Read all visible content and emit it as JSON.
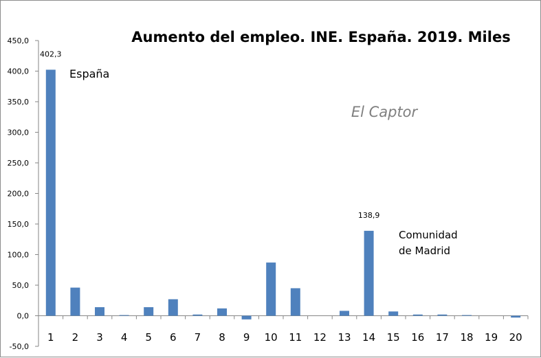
{
  "chart_data": {
    "type": "bar",
    "title": "Aumento del empleo. INE. España. 2019. Miles",
    "xlabel": "",
    "ylabel": "",
    "ylim": [
      -50,
      450
    ],
    "y_ticks": [
      "-50,0",
      "0,0",
      "50,0",
      "100,0",
      "150,0",
      "200,0",
      "250,0",
      "300,0",
      "350,0",
      "400,0",
      "450,0"
    ],
    "categories": [
      "1",
      "2",
      "3",
      "4",
      "5",
      "6",
      "7",
      "8",
      "9",
      "10",
      "11",
      "12",
      "13",
      "14",
      "15",
      "16",
      "17",
      "18",
      "19",
      "20"
    ],
    "values": [
      402.3,
      46,
      14,
      1,
      14,
      27,
      2,
      12,
      -6,
      87,
      45,
      0,
      8,
      138.9,
      7,
      2,
      2,
      1,
      0,
      -3
    ],
    "bar_color": "#4f81bd",
    "grid": false,
    "data_labels": [
      {
        "index": 0,
        "text": "402,3"
      },
      {
        "index": 13,
        "text": "138,9"
      }
    ],
    "annotations": {
      "spain": "España",
      "madrid_line1": "Comunidad",
      "madrid_line2": "de Madrid",
      "watermark": "El Captor"
    }
  }
}
